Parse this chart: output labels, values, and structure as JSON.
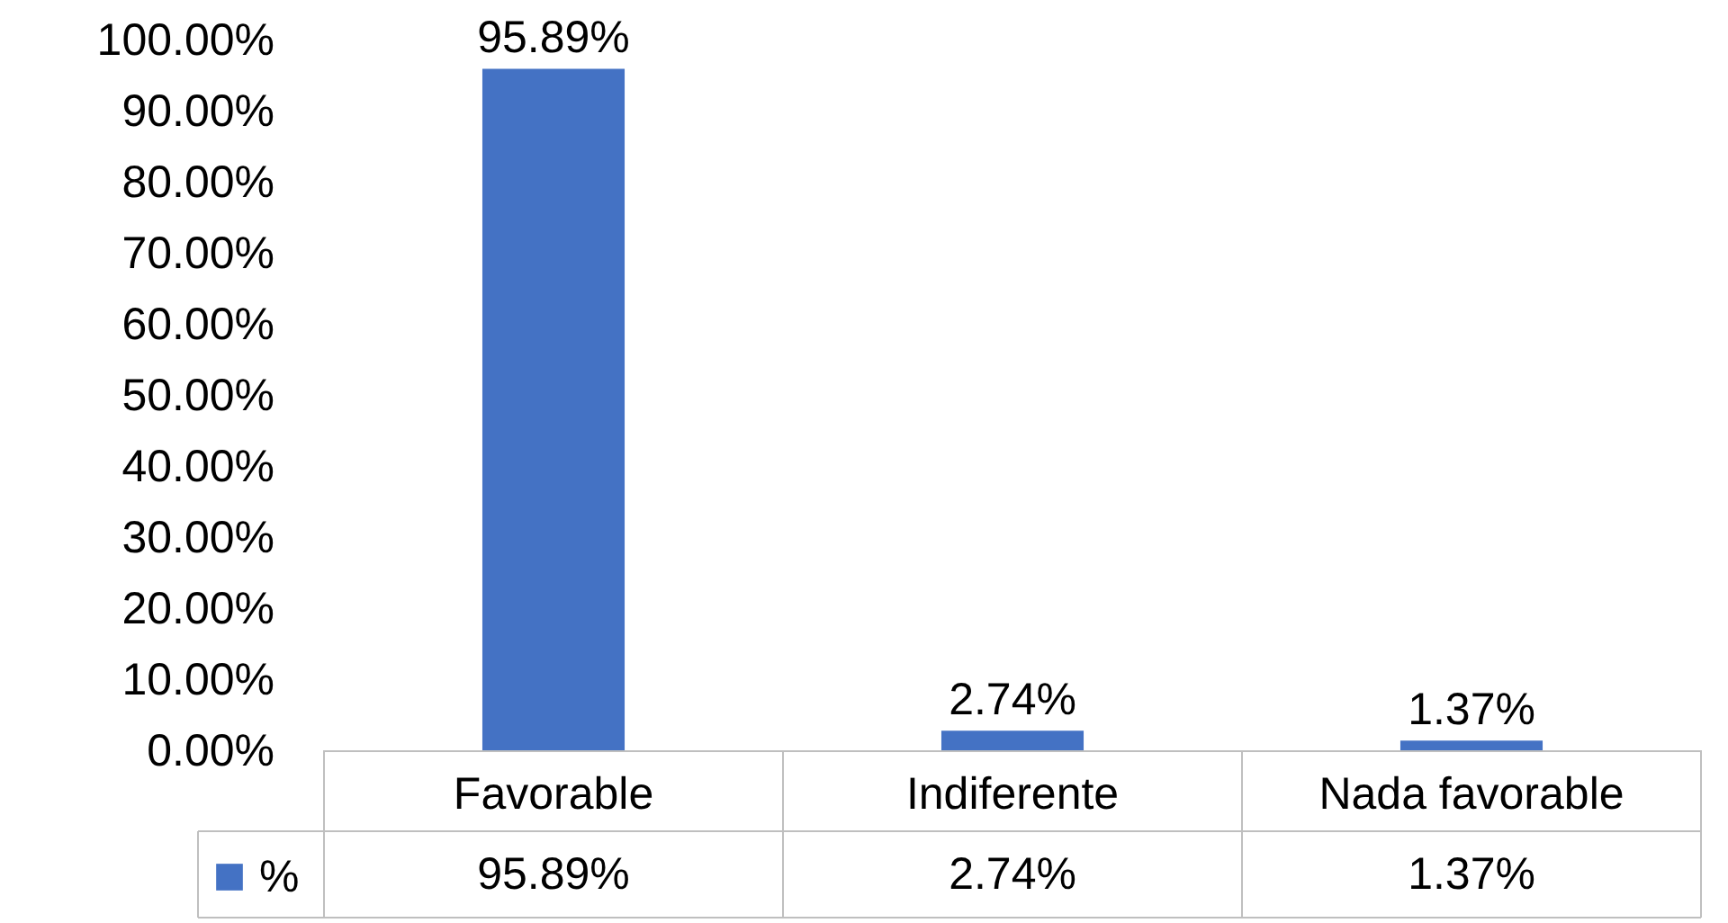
{
  "chart_data": {
    "type": "bar",
    "categories": [
      "Favorable",
      "Indiferente",
      "Nada favorable"
    ],
    "series": [
      {
        "name": "%",
        "color": "#4472c4",
        "values": [
          95.89,
          2.74,
          1.37
        ],
        "value_labels": [
          "95.89%",
          "2.74%",
          "1.37%"
        ]
      }
    ],
    "ylim": [
      0,
      100
    ],
    "yticks": [
      {
        "value": 0,
        "label": "0.00%"
      },
      {
        "value": 10,
        "label": "10.00%"
      },
      {
        "value": 20,
        "label": "20.00%"
      },
      {
        "value": 30,
        "label": "30.00%"
      },
      {
        "value": 40,
        "label": "40.00%"
      },
      {
        "value": 50,
        "label": "50.00%"
      },
      {
        "value": 60,
        "label": "60.00%"
      },
      {
        "value": 70,
        "label": "70.00%"
      },
      {
        "value": 80,
        "label": "80.00%"
      },
      {
        "value": 90,
        "label": "90.00%"
      },
      {
        "value": 100,
        "label": "100.00%"
      }
    ],
    "legend": "bottom",
    "grid": false
  }
}
